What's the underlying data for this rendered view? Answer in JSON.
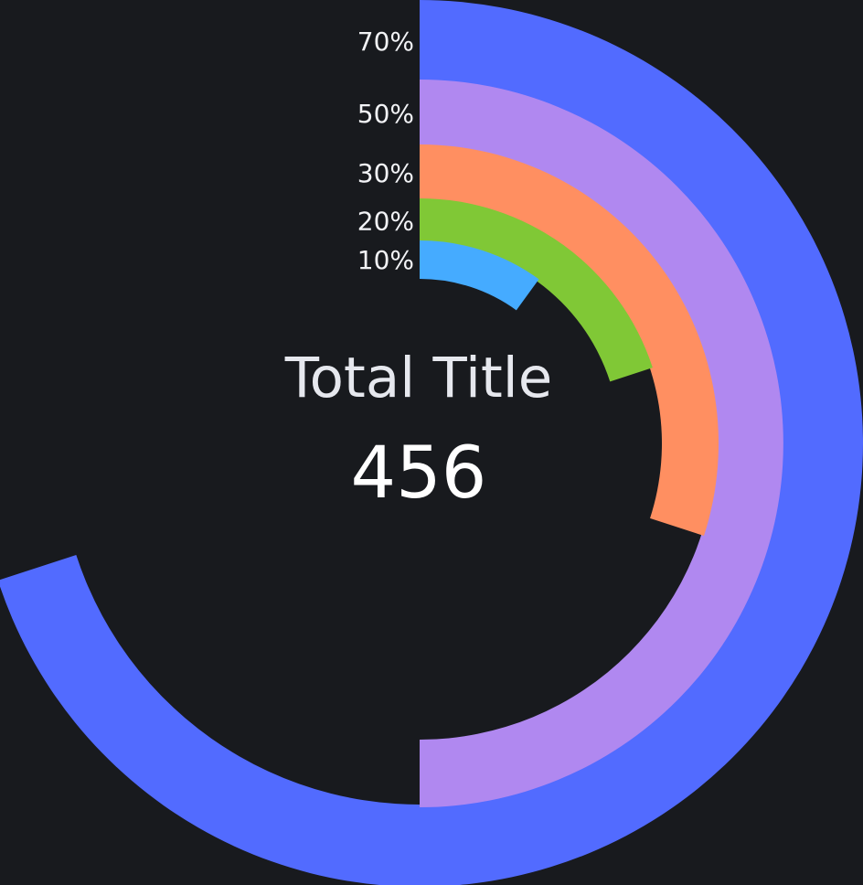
{
  "chart_data": {
    "type": "radial-bar",
    "center": {
      "title": "Total Title",
      "value": "456"
    },
    "series": [
      {
        "label": "70%",
        "value": 70,
        "color": "#526bff"
      },
      {
        "label": "50%",
        "value": 50,
        "color": "#b088f0"
      },
      {
        "label": "30%",
        "value": 30,
        "color": "#ff8f61"
      },
      {
        "label": "20%",
        "value": 20,
        "color": "#80c836"
      },
      {
        "label": "10%",
        "value": 10,
        "color": "#45abff"
      }
    ],
    "max": 100
  }
}
